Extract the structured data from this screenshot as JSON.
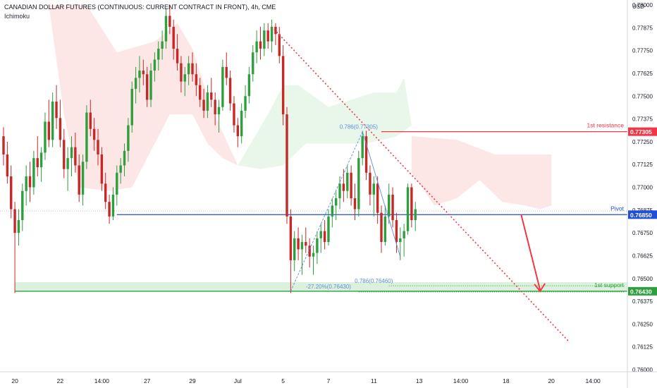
{
  "header": {
    "title": "CANADIAN DOLLAR FUTURES (CONTINUOUS: CURRENT CONTRACT IN FRONT), 4h, CME",
    "indicator": "Ichimoku"
  },
  "colors": {
    "bull": "#26a69a",
    "bull_body": "#2e9e3e",
    "bear": "#c62828",
    "resistance": "#f23645",
    "pivot": "#1e4fd8",
    "support": "#2e9e3e",
    "cloud_bull": "#e8f5e9",
    "cloud_bear": "#fde3e3",
    "fib": "#5b8fd8",
    "trendline": "#f23645"
  },
  "chart_data": {
    "type": "candlestick",
    "title": "CANADIAN DOLLAR FUTURES (CONTINUOUS: CURRENT CONTRACT IN FRONT), 4h, CME",
    "currency_label": "USD",
    "y_range": [
      0.76,
      0.7805
    ],
    "y_ticks": [
      "0.78000",
      "0.77875",
      "0.77750",
      "0.77625",
      "0.77500",
      "0.77375",
      "0.77250",
      "0.77125",
      "0.77000",
      "0.76875",
      "0.76750",
      "0.76625",
      "0.76500",
      "0.76375",
      "0.76250",
      "0.76125",
      "0.76000"
    ],
    "x_ticks": [
      {
        "label": "20",
        "i": 3
      },
      {
        "label": "22",
        "i": 15
      },
      {
        "label": "14:00",
        "i": 26
      },
      {
        "label": "27",
        "i": 38
      },
      {
        "label": "29",
        "i": 50
      },
      {
        "label": "Jul",
        "i": 62
      },
      {
        "label": "5",
        "i": 74
      },
      {
        "label": "7",
        "i": 86
      },
      {
        "label": "11",
        "i": 98
      },
      {
        "label": "13",
        "i": 110
      },
      {
        "label": "14:00",
        "i": 121
      },
      {
        "label": "18",
        "i": 133
      },
      {
        "label": "20",
        "i": 145
      },
      {
        "label": "14:00",
        "i": 156
      }
    ],
    "candles": [
      [
        0.7728,
        0.7733,
        0.7712,
        0.7718
      ],
      [
        0.7718,
        0.7725,
        0.7702,
        0.7706
      ],
      [
        0.7706,
        0.7712,
        0.7683,
        0.7688
      ],
      [
        0.7688,
        0.7692,
        0.7642,
        0.7675
      ],
      [
        0.7675,
        0.7688,
        0.7668,
        0.7682
      ],
      [
        0.7682,
        0.7702,
        0.7676,
        0.7698
      ],
      [
        0.7698,
        0.7712,
        0.769,
        0.7706
      ],
      [
        0.7706,
        0.7714,
        0.7692,
        0.77
      ],
      [
        0.77,
        0.772,
        0.7696,
        0.7716
      ],
      [
        0.7716,
        0.7728,
        0.7706,
        0.7711
      ],
      [
        0.7711,
        0.7722,
        0.7703,
        0.7719
      ],
      [
        0.7719,
        0.7741,
        0.7715,
        0.7736
      ],
      [
        0.7736,
        0.7748,
        0.7722,
        0.7726
      ],
      [
        0.7726,
        0.7752,
        0.7722,
        0.7747
      ],
      [
        0.7747,
        0.7756,
        0.7732,
        0.7738
      ],
      [
        0.7738,
        0.7748,
        0.7722,
        0.7726
      ],
      [
        0.7726,
        0.7732,
        0.7705,
        0.771
      ],
      [
        0.771,
        0.7722,
        0.7698,
        0.7716
      ],
      [
        0.7716,
        0.7728,
        0.7706,
        0.7722
      ],
      [
        0.7722,
        0.773,
        0.7708,
        0.7712
      ],
      [
        0.7712,
        0.7718,
        0.7692,
        0.7696
      ],
      [
        0.7696,
        0.7718,
        0.769,
        0.7714
      ],
      [
        0.7714,
        0.7745,
        0.771,
        0.7741
      ],
      [
        0.7741,
        0.7748,
        0.7728,
        0.7732
      ],
      [
        0.7732,
        0.7738,
        0.772,
        0.7726
      ],
      [
        0.7726,
        0.7732,
        0.7712,
        0.7718
      ],
      [
        0.7718,
        0.7722,
        0.7698,
        0.7702
      ],
      [
        0.7702,
        0.7708,
        0.7688,
        0.7692
      ],
      [
        0.7692,
        0.7696,
        0.768,
        0.7684
      ],
      [
        0.7684,
        0.77,
        0.7682,
        0.7696
      ],
      [
        0.7696,
        0.7712,
        0.769,
        0.7708
      ],
      [
        0.7708,
        0.7716,
        0.7702,
        0.7712
      ],
      [
        0.7712,
        0.7724,
        0.7706,
        0.772
      ],
      [
        0.772,
        0.7738,
        0.7714,
        0.7734
      ],
      [
        0.7734,
        0.7758,
        0.773,
        0.7754
      ],
      [
        0.7754,
        0.7766,
        0.7746,
        0.776
      ],
      [
        0.776,
        0.7772,
        0.7752,
        0.7764
      ],
      [
        0.7764,
        0.777,
        0.7756,
        0.7762
      ],
      [
        0.7762,
        0.7766,
        0.7744,
        0.7748
      ],
      [
        0.7748,
        0.7768,
        0.7744,
        0.7764
      ],
      [
        0.7764,
        0.7774,
        0.7758,
        0.777
      ],
      [
        0.777,
        0.778,
        0.7764,
        0.7776
      ],
      [
        0.7776,
        0.7786,
        0.777,
        0.778
      ],
      [
        0.778,
        0.7798,
        0.7776,
        0.7794
      ],
      [
        0.7794,
        0.78,
        0.7784,
        0.7788
      ],
      [
        0.7788,
        0.7792,
        0.777,
        0.7776
      ],
      [
        0.7776,
        0.7784,
        0.7764,
        0.7768
      ],
      [
        0.7768,
        0.7772,
        0.7752,
        0.7758
      ],
      [
        0.7758,
        0.7766,
        0.775,
        0.7762
      ],
      [
        0.7762,
        0.7772,
        0.7756,
        0.7768
      ],
      [
        0.7768,
        0.7774,
        0.7758,
        0.7762
      ],
      [
        0.7762,
        0.7768,
        0.775,
        0.7756
      ],
      [
        0.7756,
        0.776,
        0.7744,
        0.7748
      ],
      [
        0.7748,
        0.7754,
        0.7738,
        0.7742
      ],
      [
        0.7742,
        0.7756,
        0.7738,
        0.7752
      ],
      [
        0.7752,
        0.776,
        0.7744,
        0.7748
      ],
      [
        0.7748,
        0.7752,
        0.7734,
        0.774
      ],
      [
        0.774,
        0.7748,
        0.773,
        0.7744
      ],
      [
        0.7744,
        0.777,
        0.7742,
        0.7766
      ],
      [
        0.7766,
        0.7774,
        0.7756,
        0.776
      ],
      [
        0.776,
        0.7764,
        0.7742,
        0.7746
      ],
      [
        0.7746,
        0.775,
        0.773,
        0.7734
      ],
      [
        0.7734,
        0.7738,
        0.7722,
        0.7728
      ],
      [
        0.7728,
        0.7746,
        0.7724,
        0.7742
      ],
      [
        0.7742,
        0.7756,
        0.7738,
        0.775
      ],
      [
        0.775,
        0.7766,
        0.7746,
        0.7762
      ],
      [
        0.7762,
        0.7778,
        0.7758,
        0.7774
      ],
      [
        0.7774,
        0.7786,
        0.7768,
        0.778
      ],
      [
        0.778,
        0.7788,
        0.777,
        0.7776
      ],
      [
        0.7776,
        0.779,
        0.7772,
        0.7786
      ],
      [
        0.7786,
        0.779,
        0.7776,
        0.778
      ],
      [
        0.778,
        0.7792,
        0.7774,
        0.7788
      ],
      [
        0.7788,
        0.779,
        0.7778,
        0.7784
      ],
      [
        0.7784,
        0.7788,
        0.7768,
        0.7772
      ],
      [
        0.7772,
        0.7778,
        0.7734,
        0.774
      ],
      [
        0.774,
        0.7744,
        0.768,
        0.7684
      ],
      [
        0.7684,
        0.7688,
        0.7642,
        0.766
      ],
      [
        0.766,
        0.7676,
        0.7654,
        0.7672
      ],
      [
        0.7672,
        0.7678,
        0.766,
        0.7666
      ],
      [
        0.7666,
        0.7674,
        0.7652,
        0.767
      ],
      [
        0.767,
        0.7678,
        0.7664,
        0.7668
      ],
      [
        0.7668,
        0.7672,
        0.7656,
        0.7662
      ],
      [
        0.7662,
        0.7668,
        0.7652,
        0.7664
      ],
      [
        0.7664,
        0.7676,
        0.7658,
        0.7672
      ],
      [
        0.7672,
        0.768,
        0.7664,
        0.7676
      ],
      [
        0.7676,
        0.7682,
        0.7666,
        0.767
      ],
      [
        0.767,
        0.7688,
        0.7668,
        0.7684
      ],
      [
        0.7684,
        0.7694,
        0.7678,
        0.769
      ],
      [
        0.769,
        0.7698,
        0.7682,
        0.7694
      ],
      [
        0.7694,
        0.7706,
        0.7688,
        0.7702
      ],
      [
        0.7702,
        0.771,
        0.7692,
        0.7698
      ],
      [
        0.7698,
        0.7712,
        0.7694,
        0.7708
      ],
      [
        0.7708,
        0.7712,
        0.769,
        0.7694
      ],
      [
        0.7694,
        0.7702,
        0.7682,
        0.7688
      ],
      [
        0.7688,
        0.772,
        0.7684,
        0.7716
      ],
      [
        0.7716,
        0.7731,
        0.7712,
        0.7728
      ],
      [
        0.7728,
        0.7731,
        0.7704,
        0.7708
      ],
      [
        0.7708,
        0.7712,
        0.769,
        0.7696
      ],
      [
        0.7696,
        0.7706,
        0.7684,
        0.7702
      ],
      [
        0.7702,
        0.7706,
        0.768,
        0.7686
      ],
      [
        0.7686,
        0.769,
        0.7664,
        0.767
      ],
      [
        0.767,
        0.769,
        0.7668,
        0.7684
      ],
      [
        0.7684,
        0.7702,
        0.768,
        0.7696
      ],
      [
        0.7696,
        0.77,
        0.7678,
        0.7682
      ],
      [
        0.7682,
        0.7686,
        0.7664,
        0.767
      ],
      [
        0.767,
        0.7678,
        0.766,
        0.7672
      ],
      [
        0.7672,
        0.768,
        0.7662,
        0.7676
      ],
      [
        0.7676,
        0.7702,
        0.7674,
        0.77
      ],
      [
        0.77,
        0.7702,
        0.7678,
        0.7682
      ],
      [
        0.7682,
        0.7692,
        0.7676,
        0.7688
      ]
    ],
    "levels": [
      {
        "name": "1st resistance",
        "value": 0.77305,
        "label": "0.77305"
      },
      {
        "name": "Pivot",
        "value": 0.7685,
        "label": "0.76850"
      },
      {
        "name": "1st support",
        "value": 0.7643,
        "label": "0.76430"
      }
    ],
    "fib_labels": [
      {
        "text": "0.786(0.77305)",
        "i": 94,
        "value": 0.77305
      },
      {
        "text": "0.786(0.76460)",
        "i": 98,
        "value": 0.7646
      },
      {
        "text": "-27.20%(0.76430)",
        "i": 86,
        "value": 0.7643
      }
    ],
    "prior_close_line": 0.7687,
    "projection": {
      "from_i": 137,
      "from_value": 0.7685,
      "to_i": 142,
      "to_value": 0.7643
    }
  }
}
